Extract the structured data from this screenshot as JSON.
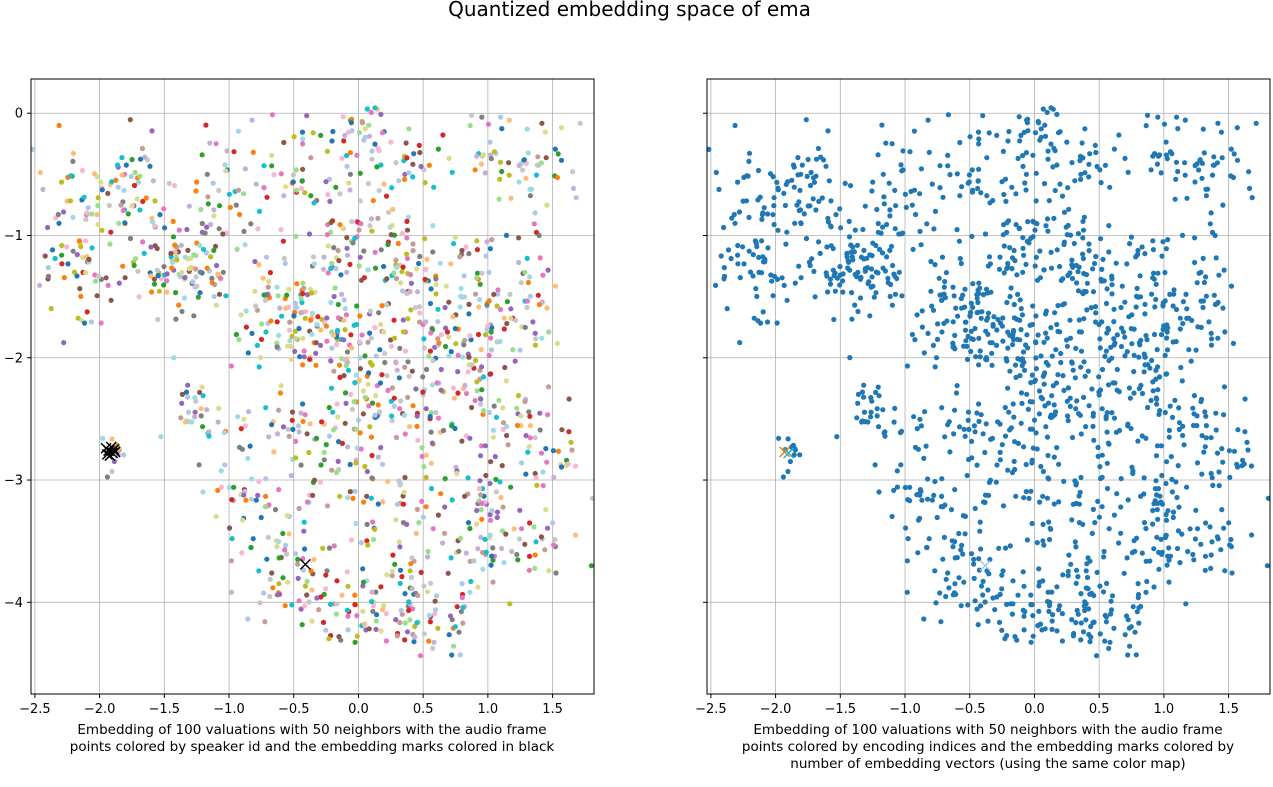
{
  "figure": {
    "title": "Quantized embedding space of ema"
  },
  "chart_data": [
    {
      "type": "scatter",
      "title": "",
      "xlabel": "Embedding of 100 valuations with 50 neighbors with the audio frame points colored by speaker id and the embedding marks colored in black",
      "ylabel": "",
      "xlim": [
        -2.53,
        1.82
      ],
      "ylim": [
        -4.75,
        0.28
      ],
      "xticks": [
        -2.5,
        -2.0,
        -1.5,
        -1.0,
        -0.5,
        0.0,
        0.5,
        1.0,
        1.5
      ],
      "xtick_labels": [
        "−2.5",
        "−2.0",
        "−1.5",
        "−1.0",
        "−0.5",
        "0.0",
        "0.5",
        "1.0",
        "1.5"
      ],
      "yticks": [
        0,
        -1,
        -2,
        -3,
        -4
      ],
      "ytick_labels": [
        "0",
        "−1",
        "−2",
        "−3",
        "−4"
      ],
      "grid": true,
      "point_coloring": "speaker id (categorical palette)",
      "palette": [
        "#1f77b4",
        "#ff7f0e",
        "#2ca02c",
        "#d62728",
        "#9467bd",
        "#8c564b",
        "#e377c2",
        "#7f7f7f",
        "#bcbd22",
        "#17becf",
        "#aec7e8",
        "#ffbb78",
        "#98df8a",
        "#f7b6d2",
        "#c5b0d5",
        "#c49c94",
        "#c7c7c7",
        "#dbdb8d",
        "#9edae5"
      ],
      "approx_point_count": 1400,
      "embedding_marks": {
        "marker": "x",
        "color": "#000000",
        "points": [
          [
            -1.93,
            -2.76
          ],
          [
            -1.9,
            -2.78
          ],
          [
            -1.95,
            -2.74
          ],
          [
            -1.88,
            -2.77
          ],
          [
            -1.92,
            -2.8
          ],
          [
            -1.91,
            -2.73
          ],
          [
            -1.94,
            -2.79
          ],
          [
            -1.89,
            -2.75
          ],
          [
            -0.41,
            -3.69
          ]
        ]
      }
    },
    {
      "type": "scatter",
      "title": "",
      "xlabel": "Embedding of 100 valuations with 50 neighbors with the audio frame points colored by encoding indices and the embedding marks colored by number of embedding vectors (using the same color map)",
      "ylabel": "",
      "xlim": [
        -2.53,
        1.82
      ],
      "ylim": [
        -4.75,
        0.28
      ],
      "xticks": [
        -2.5,
        -2.0,
        -1.5,
        -1.0,
        -0.5,
        0.0,
        0.5,
        1.0,
        1.5
      ],
      "xtick_labels": [
        "−2.5",
        "−2.0",
        "−1.5",
        "−1.0",
        "−0.5",
        "0.0",
        "0.5",
        "1.0",
        "1.5"
      ],
      "yticks": [
        0,
        -1,
        -2,
        -3,
        -4
      ],
      "ytick_labels": [],
      "grid": true,
      "point_color": "#1f77b4",
      "approx_point_count": 1400,
      "embedding_marks": {
        "marker": "x",
        "colors": [
          "#ff7f0e",
          "#17becf",
          "#aec7e8"
        ],
        "points": [
          [
            -1.93,
            -2.77
          ],
          [
            -1.9,
            -2.78
          ],
          [
            -0.38,
            -3.7
          ]
        ]
      }
    }
  ]
}
